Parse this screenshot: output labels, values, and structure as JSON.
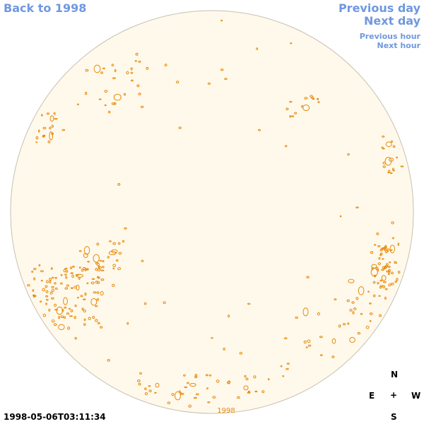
{
  "nav": {
    "back": "Back to 1998",
    "previous_day": "Previous day",
    "next_day": "Next day",
    "previous_hour": "Previous hour",
    "next_hour": "Next hour"
  },
  "timestamp": "1998-05-06T03:11:34",
  "disk_label": "1998",
  "compass": {
    "north": "N",
    "east": "E",
    "center": "+",
    "west": "W",
    "south": "S"
  },
  "colors": {
    "disk_fill": "#fff9ec",
    "disk_edge": "#c8c0b0",
    "contour": "#e88a0a",
    "link": "#6f98e0"
  }
}
